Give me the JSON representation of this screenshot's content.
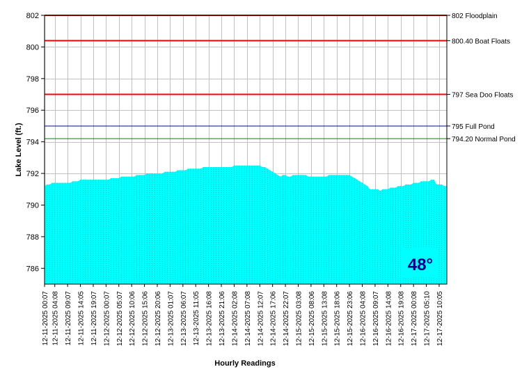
{
  "chart_data": {
    "type": "area",
    "xlabel": "Hourly Readings",
    "ylabel": "Lake Level (ft.)",
    "ylim": [
      785,
      802
    ],
    "y_ticks": [
      786,
      788,
      790,
      792,
      794,
      796,
      798,
      800,
      802
    ],
    "grid": true,
    "fill_color": "#00ffff",
    "x_ticks": [
      {
        "index": 0,
        "label": "12-11-2025 00:07"
      },
      {
        "index": 4,
        "label": "12-11-2025 04:08"
      },
      {
        "index": 9,
        "label": "12-11-2025 09:07"
      },
      {
        "index": 14,
        "label": "12-11-2025 14:05"
      },
      {
        "index": 19,
        "label": "12-11-2025 19:07"
      },
      {
        "index": 24,
        "label": "12-12-2025 00:07"
      },
      {
        "index": 29,
        "label": "12-12-2025 05:07"
      },
      {
        "index": 34,
        "label": "12-12-2025 10:06"
      },
      {
        "index": 39,
        "label": "12-12-2025 15:06"
      },
      {
        "index": 44,
        "label": "12-12-2025 20:06"
      },
      {
        "index": 49,
        "label": "12-13-2025 01:07"
      },
      {
        "index": 54,
        "label": "12-13-2025 06:07"
      },
      {
        "index": 59,
        "label": "12-13-2025 11:05"
      },
      {
        "index": 64,
        "label": "12-13-2025 16:08"
      },
      {
        "index": 69,
        "label": "12-13-2025 21:06"
      },
      {
        "index": 74,
        "label": "12-14-2025 02:08"
      },
      {
        "index": 79,
        "label": "12-14-2025 07:08"
      },
      {
        "index": 84,
        "label": "12-14-2025 12:07"
      },
      {
        "index": 89,
        "label": "12-14-2025 17:06"
      },
      {
        "index": 94,
        "label": "12-14-2025 22:07"
      },
      {
        "index": 99,
        "label": "12-15-2025 03:08"
      },
      {
        "index": 104,
        "label": "12-15-2025 08:06"
      },
      {
        "index": 109,
        "label": "12-15-2025 13:08"
      },
      {
        "index": 114,
        "label": "12-15-2025 18:06"
      },
      {
        "index": 119,
        "label": "12-15-2025 23:06"
      },
      {
        "index": 124,
        "label": "12-16-2025 04:08"
      },
      {
        "index": 129,
        "label": "12-16-2025 09:07"
      },
      {
        "index": 134,
        "label": "12-16-2025 14:08"
      },
      {
        "index": 139,
        "label": "12-16-2025 19:08"
      },
      {
        "index": 144,
        "label": "12-17-2025 00:08"
      },
      {
        "index": 149,
        "label": "12-17-2025 05:10"
      },
      {
        "index": 154,
        "label": "12-17-2025 10:05"
      }
    ],
    "series": [
      {
        "values": [
          791.2,
          791.3,
          791.3,
          791.4,
          791.4,
          791.4,
          791.4,
          791.4,
          791.4,
          791.4,
          791.4,
          791.5,
          791.5,
          791.5,
          791.6,
          791.6,
          791.6,
          791.6,
          791.6,
          791.6,
          791.6,
          791.6,
          791.6,
          791.6,
          791.6,
          791.6,
          791.7,
          791.7,
          791.7,
          791.7,
          791.8,
          791.8,
          791.8,
          791.8,
          791.8,
          791.8,
          791.9,
          791.9,
          791.9,
          791.9,
          792.0,
          792.0,
          792.0,
          792.0,
          792.0,
          792.0,
          792.0,
          792.1,
          792.1,
          792.1,
          792.1,
          792.1,
          792.2,
          792.2,
          792.2,
          792.2,
          792.3,
          792.3,
          792.3,
          792.3,
          792.3,
          792.3,
          792.4,
          792.4,
          792.4,
          792.4,
          792.4,
          792.4,
          792.4,
          792.4,
          792.4,
          792.4,
          792.4,
          792.4,
          792.5,
          792.5,
          792.5,
          792.5,
          792.5,
          792.5,
          792.5,
          792.5,
          792.5,
          792.5,
          792.5,
          792.4,
          792.4,
          792.3,
          792.2,
          792.1,
          792.0,
          791.9,
          791.8,
          791.9,
          791.9,
          791.8,
          791.8,
          791.9,
          791.9,
          791.9,
          791.9,
          791.9,
          791.9,
          791.8,
          791.8,
          791.8,
          791.8,
          791.8,
          791.8,
          791.8,
          791.8,
          791.9,
          791.9,
          791.9,
          791.9,
          791.9,
          791.9,
          791.9,
          791.9,
          791.9,
          791.8,
          791.7,
          791.6,
          791.5,
          791.4,
          791.3,
          791.2,
          791.0,
          791.0,
          791.0,
          791.0,
          790.9,
          791.0,
          791.0,
          791.0,
          791.1,
          791.1,
          791.1,
          791.2,
          791.2,
          791.2,
          791.3,
          791.3,
          791.3,
          791.4,
          791.4,
          791.4,
          791.5,
          791.5,
          791.5,
          791.5,
          791.6,
          791.6,
          791.3,
          791.3,
          791.3,
          791.2,
          791.2
        ]
      }
    ],
    "reference_lines": [
      {
        "value": 802,
        "label": "802 Floodplain",
        "color": "#ff0000"
      },
      {
        "value": 800.4,
        "label": "800.40 Boat Floats",
        "color": "#ff0000"
      },
      {
        "value": 797,
        "label": "797 Sea Doo Floats",
        "color": "#ff0000"
      },
      {
        "value": 795,
        "label": "795 Full Pond",
        "color": "#0000a0"
      },
      {
        "value": 794.2,
        "label": "794.20 Normal Pond",
        "color": "#008000"
      }
    ],
    "temperature_badge": {
      "text": "48°",
      "text_color": "#00008b",
      "background": "#00ffff"
    }
  }
}
